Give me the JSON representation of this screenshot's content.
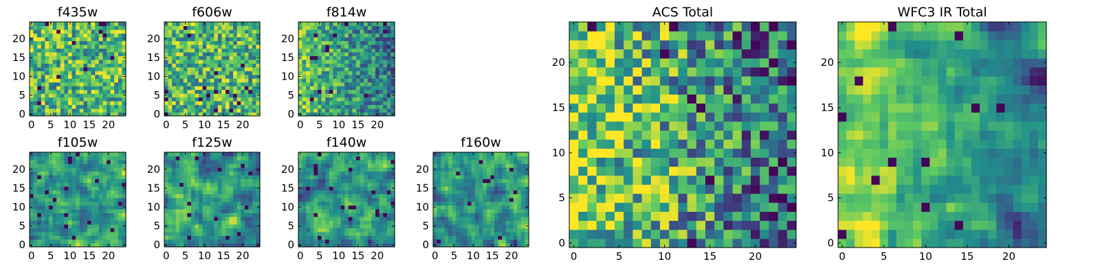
{
  "figure": {
    "colormap": [
      "#440154",
      "#3b528b",
      "#21918c",
      "#5ec962",
      "#fde725"
    ],
    "panels": [
      {
        "title": "f435w",
        "seed": 11,
        "style": "noise",
        "xticks": [
          0,
          5,
          10,
          15,
          20
        ],
        "yticks": [
          0,
          5,
          10,
          15,
          20
        ]
      },
      {
        "title": "f606w",
        "seed": 23,
        "style": "noise",
        "xticks": [
          0,
          5,
          10,
          15,
          20
        ],
        "yticks": [
          0,
          5,
          10,
          15,
          20
        ]
      },
      {
        "title": "f814w",
        "seed": 37,
        "style": "noise-grad",
        "xticks": [
          0,
          5,
          10,
          15,
          20
        ],
        "yticks": [
          0,
          5,
          10,
          15,
          20
        ]
      },
      {
        "title": "f105w",
        "seed": 41,
        "style": "smooth",
        "xticks": [
          0,
          5,
          10,
          15,
          20
        ],
        "yticks": [
          0,
          5,
          10,
          15,
          20
        ]
      },
      {
        "title": "f125w",
        "seed": 53,
        "style": "smooth",
        "xticks": [
          0,
          5,
          10,
          15,
          20
        ],
        "yticks": [
          0,
          5,
          10,
          15,
          20
        ]
      },
      {
        "title": "f140w",
        "seed": 67,
        "style": "smooth",
        "xticks": [
          0,
          5,
          10,
          15,
          20
        ],
        "yticks": [
          0,
          5,
          10,
          15,
          20
        ]
      },
      {
        "title": "f160w",
        "seed": 79,
        "style": "smooth",
        "xticks": [
          0,
          5,
          10,
          15,
          20
        ],
        "yticks": [
          0,
          5,
          10,
          15,
          20
        ]
      },
      {
        "title": "ACS Total",
        "seed": 97,
        "style": "grad",
        "xticks": [
          0,
          5,
          10,
          15,
          20
        ],
        "yticks": [
          0,
          5,
          10,
          15,
          20
        ]
      },
      {
        "title": "WFC3 IR Total",
        "seed": 113,
        "style": "grad-smooth",
        "xticks": [
          0,
          5,
          10,
          15,
          20
        ],
        "yticks": [
          0,
          5,
          10,
          15,
          20
        ]
      }
    ]
  },
  "chart_data": [
    {
      "type": "heatmap",
      "title": "f435w",
      "grid": [
        25,
        25
      ],
      "xlim": [
        -0.5,
        24.5
      ],
      "ylim": [
        -0.5,
        24.5
      ],
      "colorscale": "viridis",
      "origin": "lower"
    },
    {
      "type": "heatmap",
      "title": "f606w",
      "grid": [
        25,
        25
      ],
      "xlim": [
        -0.5,
        24.5
      ],
      "ylim": [
        -0.5,
        24.5
      ],
      "colorscale": "viridis",
      "origin": "lower"
    },
    {
      "type": "heatmap",
      "title": "f814w",
      "grid": [
        25,
        25
      ],
      "xlim": [
        -0.5,
        24.5
      ],
      "ylim": [
        -0.5,
        24.5
      ],
      "colorscale": "viridis",
      "origin": "lower"
    },
    {
      "type": "heatmap",
      "title": "f105w",
      "grid": [
        25,
        25
      ],
      "xlim": [
        -0.5,
        24.5
      ],
      "ylim": [
        -0.5,
        24.5
      ],
      "colorscale": "viridis",
      "origin": "lower"
    },
    {
      "type": "heatmap",
      "title": "f125w",
      "grid": [
        25,
        25
      ],
      "xlim": [
        -0.5,
        24.5
      ],
      "ylim": [
        -0.5,
        24.5
      ],
      "colorscale": "viridis",
      "origin": "lower"
    },
    {
      "type": "heatmap",
      "title": "f140w",
      "grid": [
        25,
        25
      ],
      "xlim": [
        -0.5,
        24.5
      ],
      "ylim": [
        -0.5,
        24.5
      ],
      "colorscale": "viridis",
      "origin": "lower"
    },
    {
      "type": "heatmap",
      "title": "f160w",
      "grid": [
        25,
        25
      ],
      "xlim": [
        -0.5,
        24.5
      ],
      "ylim": [
        -0.5,
        24.5
      ],
      "colorscale": "viridis",
      "origin": "lower"
    },
    {
      "type": "heatmap",
      "title": "ACS Total",
      "grid": [
        25,
        25
      ],
      "xlim": [
        -0.5,
        24.5
      ],
      "ylim": [
        -0.5,
        24.5
      ],
      "colorscale": "viridis",
      "origin": "lower"
    },
    {
      "type": "heatmap",
      "title": "WFC3 IR Total",
      "grid": [
        25,
        25
      ],
      "xlim": [
        -0.5,
        24.5
      ],
      "ylim": [
        -0.5,
        24.5
      ],
      "colorscale": "viridis",
      "origin": "lower"
    }
  ]
}
